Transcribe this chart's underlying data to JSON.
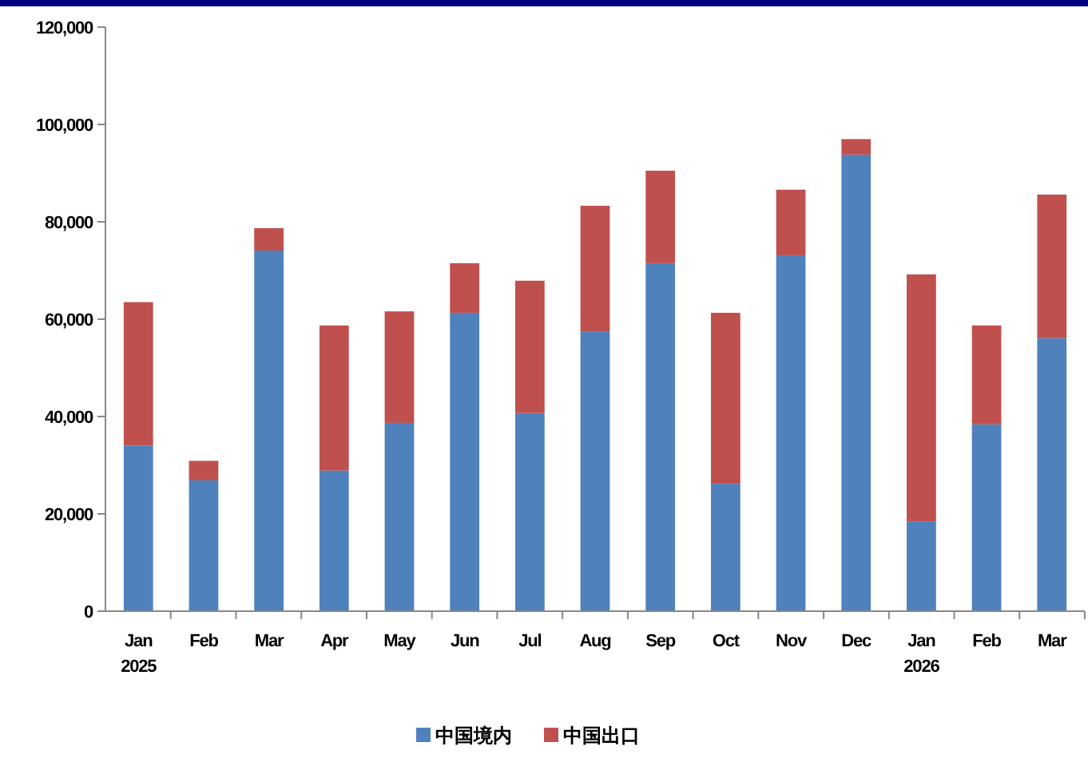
{
  "chart_data": {
    "type": "bar",
    "stacked": true,
    "categories": [
      "Jan\n2025",
      "Feb",
      "Mar",
      "Apr",
      "May",
      "Jun",
      "Jul",
      "Aug",
      "Sep",
      "Oct",
      "Nov",
      "Dec",
      "Jan\n2026",
      "Feb",
      "Mar"
    ],
    "series": [
      {
        "name": "中国境内",
        "color": "#4f81bd",
        "values": [
          34000,
          26900,
          74100,
          28900,
          38700,
          61300,
          40700,
          57400,
          71500,
          26200,
          73100,
          93800,
          18400,
          38400,
          56100
        ]
      },
      {
        "name": "中国出口",
        "color": "#c0504d",
        "values": [
          29500,
          4000,
          4600,
          29800,
          22900,
          10200,
          27200,
          25900,
          19000,
          35100,
          13500,
          3200,
          50800,
          20300,
          29500
        ]
      }
    ],
    "ylim": [
      0,
      120000
    ],
    "yticks": [
      {
        "value": 0,
        "label": "0"
      },
      {
        "value": 20000,
        "label": "20,000"
      },
      {
        "value": 40000,
        "label": "40,000"
      },
      {
        "value": 60000,
        "label": "60,000"
      },
      {
        "value": 80000,
        "label": "80,000"
      },
      {
        "value": 100000,
        "label": "100,000"
      },
      {
        "value": 120000,
        "label": "120,000"
      }
    ],
    "legend": "bottom"
  }
}
